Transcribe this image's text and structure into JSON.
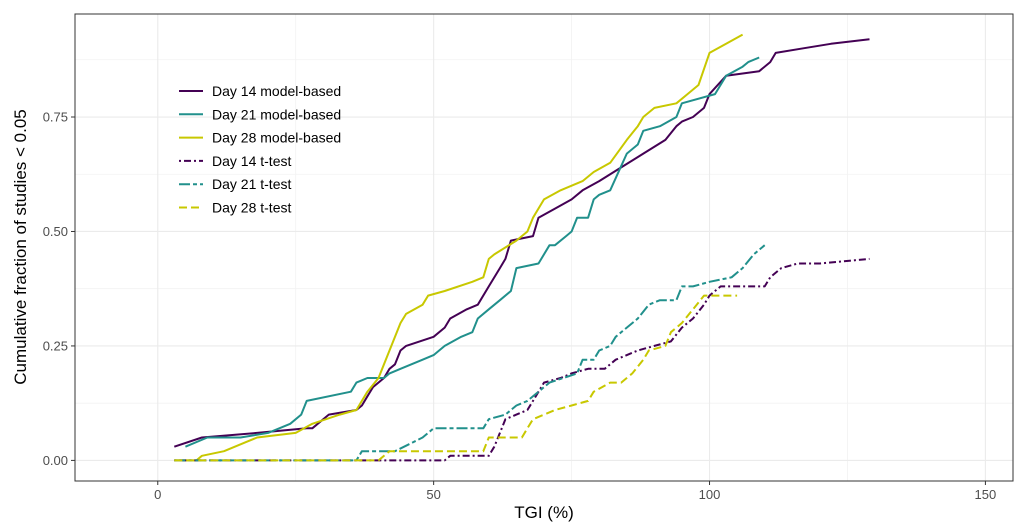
{
  "chart_data": {
    "type": "line",
    "title": "",
    "xlabel": "TGI (%)",
    "ylabel": "Cumulative fraction of studies < 0.05",
    "xlim": [
      -15,
      155
    ],
    "ylim": [
      -0.045,
      0.975
    ],
    "xticks": [
      0,
      50,
      100,
      150
    ],
    "xtick_labels": [
      "0",
      "50",
      "100",
      "150"
    ],
    "yticks": [
      0,
      0.25,
      0.5,
      0.75
    ],
    "ytick_labels": [
      "0.00",
      "0.25",
      "0.50",
      "0.75"
    ],
    "grid": true,
    "legend_position": "top-left",
    "series": [
      {
        "name": "Day 14 model-based",
        "color": "#440154",
        "dash": "solid",
        "points": [
          [
            3,
            0.03
          ],
          [
            8,
            0.05
          ],
          [
            18,
            0.06
          ],
          [
            27,
            0.07
          ],
          [
            28,
            0.07
          ],
          [
            31,
            0.1
          ],
          [
            36,
            0.11
          ],
          [
            37,
            0.12
          ],
          [
            38,
            0.14
          ],
          [
            39,
            0.16
          ],
          [
            41,
            0.18
          ],
          [
            42,
            0.2
          ],
          [
            43,
            0.21
          ],
          [
            44,
            0.24
          ],
          [
            45,
            0.25
          ],
          [
            50,
            0.27
          ],
          [
            52,
            0.29
          ],
          [
            53,
            0.31
          ],
          [
            56,
            0.33
          ],
          [
            58,
            0.34
          ],
          [
            60,
            0.38
          ],
          [
            62,
            0.42
          ],
          [
            63,
            0.44
          ],
          [
            64,
            0.48
          ],
          [
            68,
            0.49
          ],
          [
            69,
            0.53
          ],
          [
            72,
            0.55
          ],
          [
            75,
            0.57
          ],
          [
            77,
            0.59
          ],
          [
            80,
            0.61
          ],
          [
            84,
            0.64
          ],
          [
            88,
            0.67
          ],
          [
            92,
            0.7
          ],
          [
            94,
            0.73
          ],
          [
            95,
            0.74
          ],
          [
            97,
            0.75
          ],
          [
            99,
            0.77
          ],
          [
            100,
            0.8
          ],
          [
            103,
            0.84
          ],
          [
            109,
            0.85
          ],
          [
            111,
            0.87
          ],
          [
            112,
            0.89
          ],
          [
            117,
            0.9
          ],
          [
            122,
            0.91
          ],
          [
            129,
            0.92
          ]
        ]
      },
      {
        "name": "Day 21 model-based",
        "color": "#21908C",
        "dash": "solid",
        "points": [
          [
            5,
            0.03
          ],
          [
            9,
            0.05
          ],
          [
            15,
            0.05
          ],
          [
            20,
            0.06
          ],
          [
            24,
            0.08
          ],
          [
            26,
            0.1
          ],
          [
            27,
            0.13
          ],
          [
            35,
            0.15
          ],
          [
            36,
            0.17
          ],
          [
            38,
            0.18
          ],
          [
            41,
            0.18
          ],
          [
            42,
            0.19
          ],
          [
            44,
            0.2
          ],
          [
            48,
            0.22
          ],
          [
            50,
            0.23
          ],
          [
            52,
            0.25
          ],
          [
            55,
            0.27
          ],
          [
            57,
            0.28
          ],
          [
            58,
            0.31
          ],
          [
            60,
            0.33
          ],
          [
            62,
            0.35
          ],
          [
            64,
            0.37
          ],
          [
            65,
            0.42
          ],
          [
            69,
            0.43
          ],
          [
            71,
            0.47
          ],
          [
            72,
            0.47
          ],
          [
            74,
            0.49
          ],
          [
            75,
            0.5
          ],
          [
            76,
            0.53
          ],
          [
            78,
            0.53
          ],
          [
            79,
            0.57
          ],
          [
            80,
            0.58
          ],
          [
            82,
            0.59
          ],
          [
            85,
            0.67
          ],
          [
            87,
            0.69
          ],
          [
            88,
            0.72
          ],
          [
            91,
            0.73
          ],
          [
            94,
            0.75
          ],
          [
            95,
            0.78
          ],
          [
            101,
            0.8
          ],
          [
            103,
            0.84
          ],
          [
            106,
            0.86
          ],
          [
            107,
            0.87
          ],
          [
            109,
            0.88
          ]
        ]
      },
      {
        "name": "Day 28 model-based",
        "color": "#C8C800",
        "dash": "solid",
        "points": [
          [
            3,
            0
          ],
          [
            7,
            0
          ],
          [
            8,
            0.01
          ],
          [
            12,
            0.02
          ],
          [
            16,
            0.04
          ],
          [
            18,
            0.05
          ],
          [
            25,
            0.06
          ],
          [
            28,
            0.08
          ],
          [
            33,
            0.1
          ],
          [
            36,
            0.11
          ],
          [
            38,
            0.15
          ],
          [
            40,
            0.18
          ],
          [
            42,
            0.24
          ],
          [
            43,
            0.27
          ],
          [
            44,
            0.3
          ],
          [
            45,
            0.32
          ],
          [
            48,
            0.34
          ],
          [
            49,
            0.36
          ],
          [
            52,
            0.37
          ],
          [
            57,
            0.39
          ],
          [
            59,
            0.4
          ],
          [
            60,
            0.44
          ],
          [
            61,
            0.45
          ],
          [
            65,
            0.48
          ],
          [
            67,
            0.5
          ],
          [
            68,
            0.53
          ],
          [
            70,
            0.57
          ],
          [
            73,
            0.59
          ],
          [
            77,
            0.61
          ],
          [
            79,
            0.63
          ],
          [
            82,
            0.65
          ],
          [
            85,
            0.7
          ],
          [
            87,
            0.73
          ],
          [
            88,
            0.75
          ],
          [
            90,
            0.77
          ],
          [
            94,
            0.78
          ],
          [
            96,
            0.8
          ],
          [
            98,
            0.82
          ],
          [
            100,
            0.89
          ],
          [
            103,
            0.91
          ],
          [
            106,
            0.93
          ]
        ]
      },
      {
        "name": "Day 14 t-test",
        "color": "#440154",
        "dash": "dotdash",
        "points": [
          [
            3,
            0
          ],
          [
            52,
            0
          ],
          [
            53,
            0.01
          ],
          [
            58,
            0.01
          ],
          [
            60,
            0.01
          ],
          [
            61,
            0.03
          ],
          [
            62,
            0.06
          ],
          [
            63,
            0.09
          ],
          [
            65,
            0.1
          ],
          [
            67,
            0.11
          ],
          [
            68,
            0.13
          ],
          [
            69,
            0.15
          ],
          [
            70,
            0.17
          ],
          [
            73,
            0.18
          ],
          [
            75,
            0.19
          ],
          [
            78,
            0.2
          ],
          [
            81,
            0.2
          ],
          [
            83,
            0.22
          ],
          [
            87,
            0.24
          ],
          [
            90,
            0.25
          ],
          [
            93,
            0.26
          ],
          [
            95,
            0.29
          ],
          [
            97,
            0.31
          ],
          [
            99,
            0.34
          ],
          [
            100,
            0.36
          ],
          [
            102,
            0.38
          ],
          [
            110,
            0.38
          ],
          [
            111,
            0.4
          ],
          [
            113,
            0.42
          ],
          [
            116,
            0.43
          ],
          [
            120,
            0.43
          ],
          [
            129,
            0.44
          ]
        ]
      },
      {
        "name": "Day 21 t-test",
        "color": "#21908C",
        "dash": "twodash",
        "points": [
          [
            3,
            0
          ],
          [
            36,
            0
          ],
          [
            37,
            0.02
          ],
          [
            43,
            0.02
          ],
          [
            48,
            0.05
          ],
          [
            50,
            0.07
          ],
          [
            57,
            0.07
          ],
          [
            59,
            0.07
          ],
          [
            60,
            0.09
          ],
          [
            63,
            0.1
          ],
          [
            65,
            0.12
          ],
          [
            67,
            0.13
          ],
          [
            69,
            0.15
          ],
          [
            71,
            0.17
          ],
          [
            76,
            0.19
          ],
          [
            77,
            0.22
          ],
          [
            79,
            0.22
          ],
          [
            80,
            0.24
          ],
          [
            82,
            0.25
          ],
          [
            83,
            0.27
          ],
          [
            85,
            0.29
          ],
          [
            87,
            0.31
          ],
          [
            89,
            0.34
          ],
          [
            91,
            0.35
          ],
          [
            94,
            0.35
          ],
          [
            95,
            0.38
          ],
          [
            97,
            0.38
          ],
          [
            100,
            0.39
          ],
          [
            104,
            0.4
          ],
          [
            106,
            0.42
          ],
          [
            108,
            0.45
          ],
          [
            110,
            0.47
          ]
        ]
      },
      {
        "name": "Day 28 t-test",
        "color": "#C8C800",
        "dash": "longdash",
        "points": [
          [
            3,
            0
          ],
          [
            40,
            0
          ],
          [
            42,
            0.02
          ],
          [
            59,
            0.02
          ],
          [
            60,
            0.05
          ],
          [
            66,
            0.05
          ],
          [
            67,
            0.07
          ],
          [
            68,
            0.09
          ],
          [
            72,
            0.11
          ],
          [
            75,
            0.12
          ],
          [
            78,
            0.13
          ],
          [
            79,
            0.15
          ],
          [
            82,
            0.17
          ],
          [
            84,
            0.17
          ],
          [
            86,
            0.19
          ],
          [
            88,
            0.22
          ],
          [
            89,
            0.24
          ],
          [
            92,
            0.25
          ],
          [
            93,
            0.28
          ],
          [
            95,
            0.3
          ],
          [
            97,
            0.33
          ],
          [
            99,
            0.36
          ],
          [
            105,
            0.36
          ]
        ]
      }
    ]
  }
}
